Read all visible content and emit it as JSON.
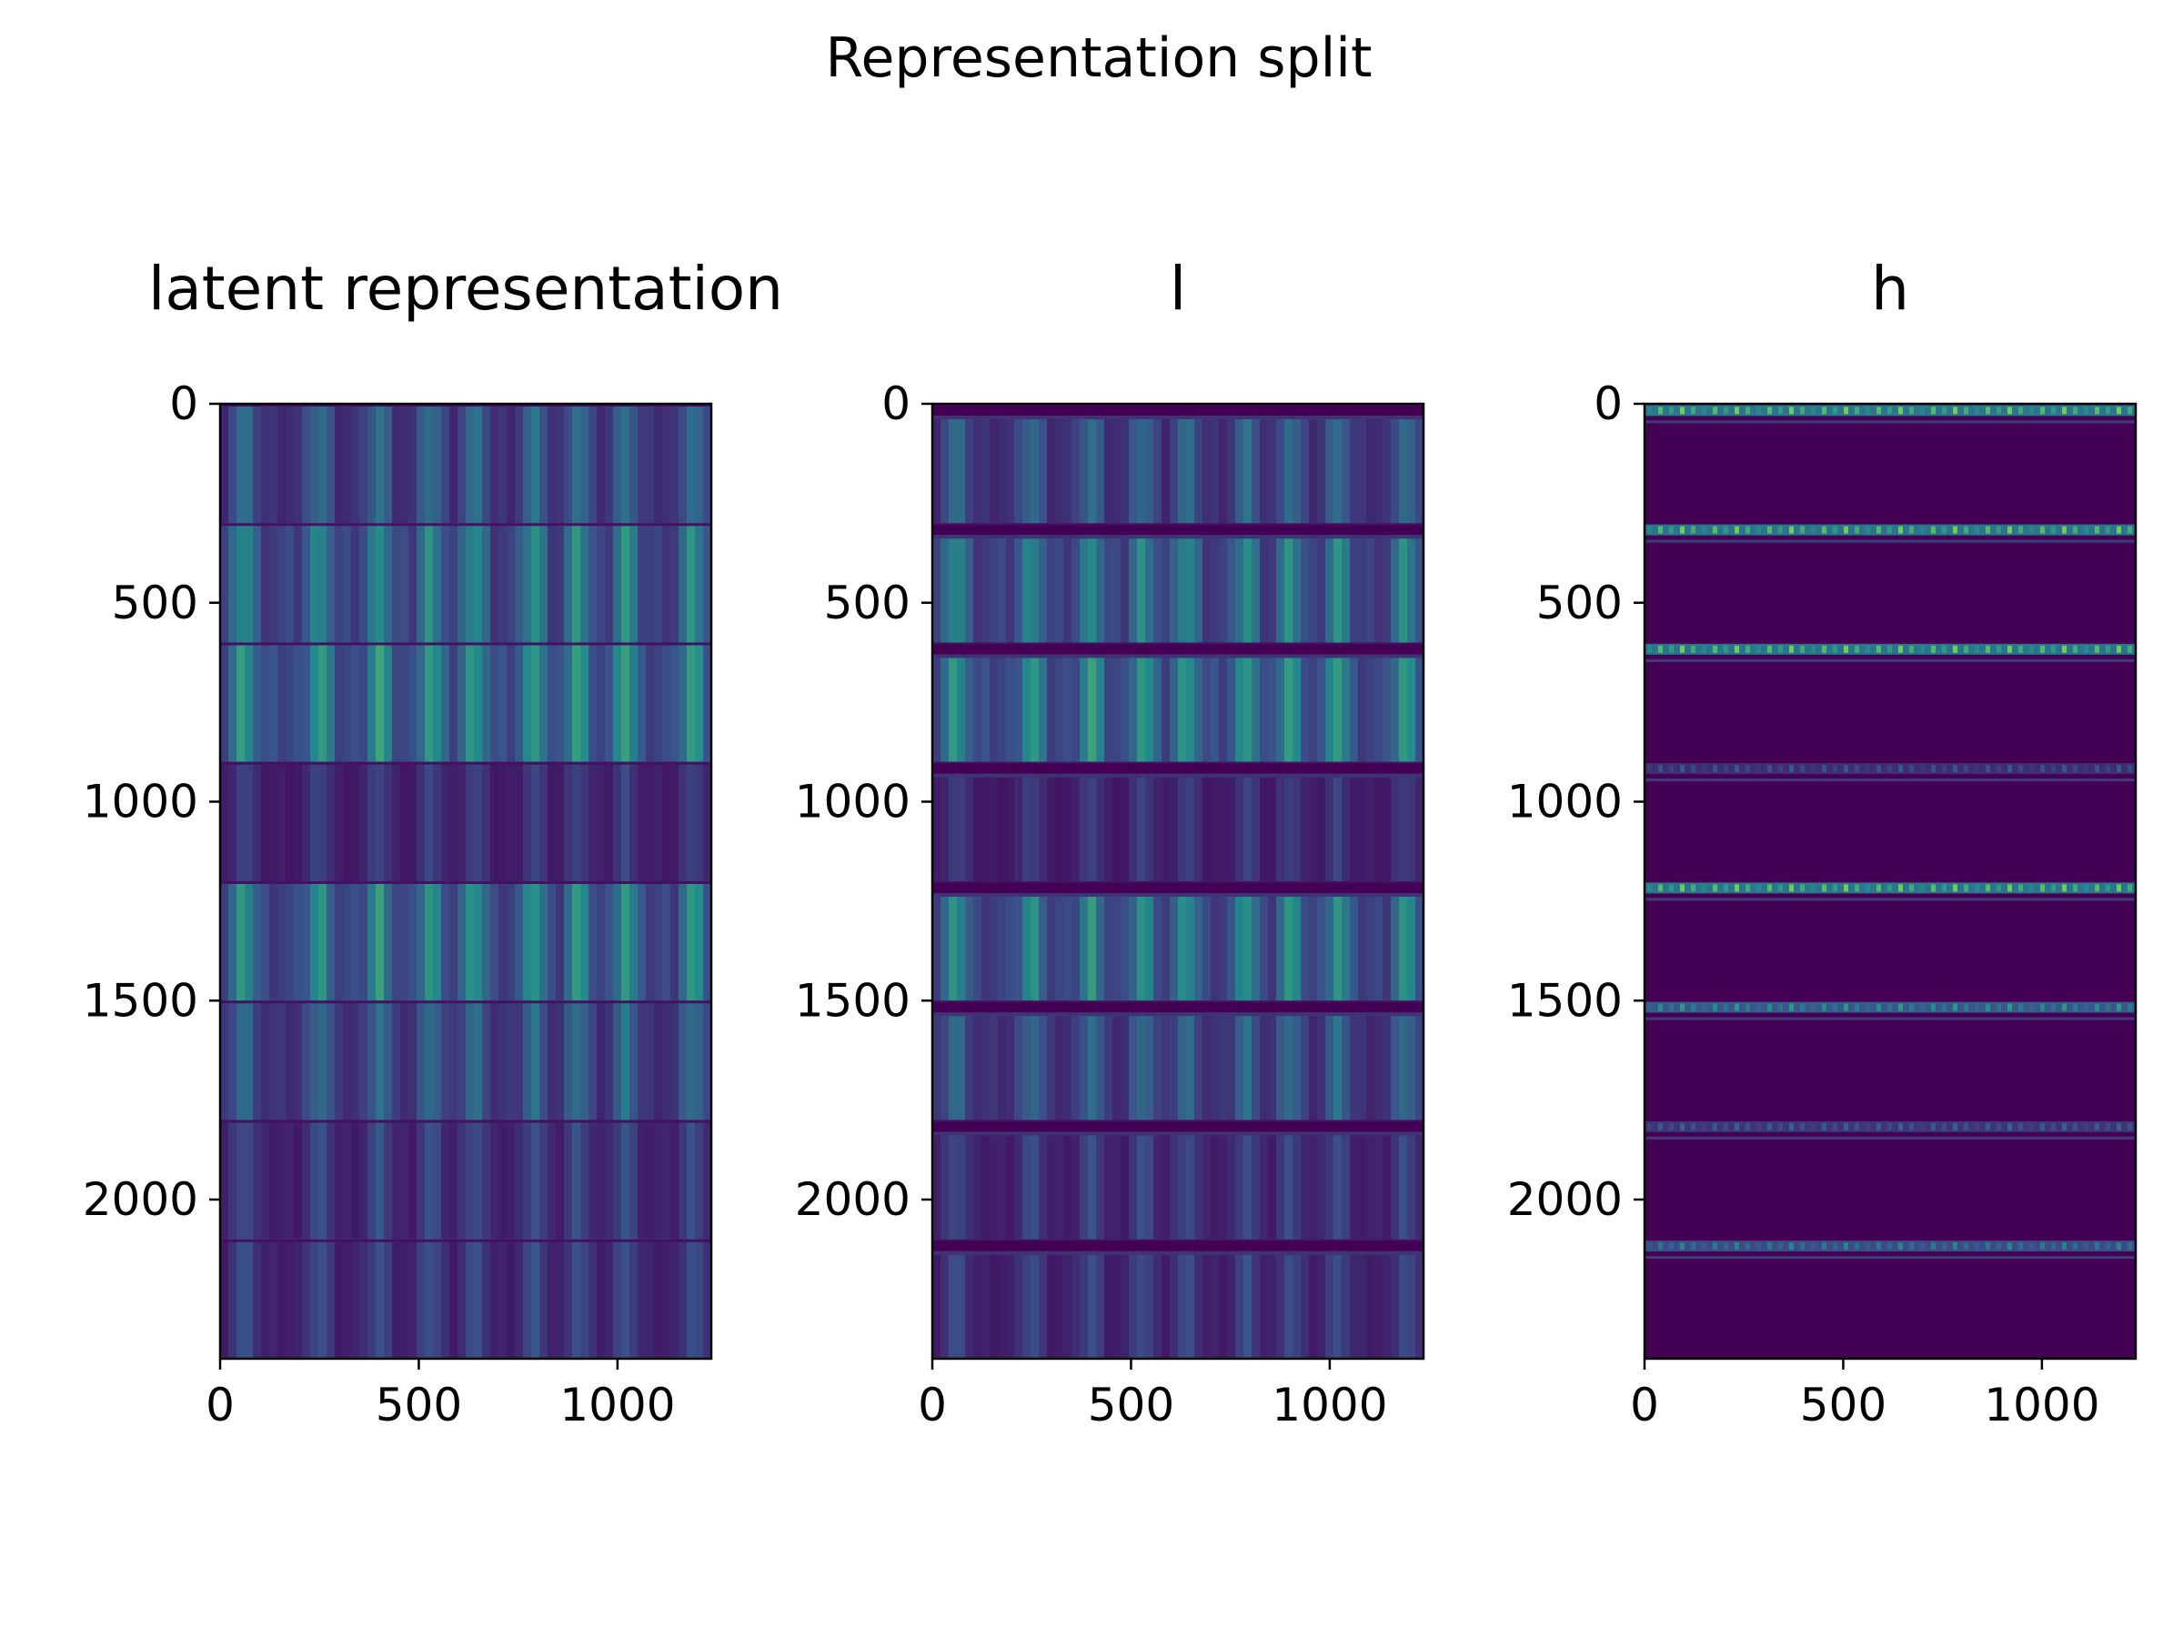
{
  "figure": {
    "suptitle": "Representation split"
  },
  "colormap": {
    "name": "viridis",
    "low": "#440154",
    "mid": "#3b528b",
    "teal": "#21918c",
    "high": "#5ec962"
  },
  "chart_data": [
    {
      "type": "heatmap",
      "title": "latent representation",
      "xlabel": "",
      "ylabel": "",
      "xlim": [
        0,
        1236
      ],
      "ylim": [
        2400,
        0
      ],
      "xticks": [
        "0",
        "500",
        "1000"
      ],
      "yticks": [
        "0",
        "500",
        "1000",
        "1500",
        "2000"
      ],
      "blocks": [
        {
          "y0": 0,
          "y1": 300,
          "intensity": 0.62
        },
        {
          "y0": 300,
          "y1": 600,
          "intensity": 0.82
        },
        {
          "y0": 600,
          "y1": 900,
          "intensity": 0.92
        },
        {
          "y0": 900,
          "y1": 1200,
          "intensity": 0.35
        },
        {
          "y0": 1200,
          "y1": 1500,
          "intensity": 0.86
        },
        {
          "y0": 1500,
          "y1": 1800,
          "intensity": 0.62
        },
        {
          "y0": 1800,
          "y1": 2100,
          "intensity": 0.42
        },
        {
          "y0": 2100,
          "y1": 2400,
          "intensity": 0.42
        }
      ],
      "bright_columns": [
        60,
        250,
        400,
        530,
        640,
        790,
        900,
        1020,
        1190
      ],
      "grid": false
    },
    {
      "type": "heatmap",
      "title": "l",
      "xlabel": "",
      "ylabel": "",
      "xlim": [
        0,
        1236
      ],
      "ylim": [
        2400,
        0
      ],
      "xticks": [
        "0",
        "500",
        "1000"
      ],
      "yticks": [
        "0",
        "500",
        "1000",
        "1500",
        "2000"
      ],
      "blocks": [
        {
          "y0": 0,
          "y1": 300,
          "intensity": 0.6
        },
        {
          "y0": 300,
          "y1": 600,
          "intensity": 0.8
        },
        {
          "y0": 600,
          "y1": 900,
          "intensity": 0.9
        },
        {
          "y0": 900,
          "y1": 1200,
          "intensity": 0.33
        },
        {
          "y0": 1200,
          "y1": 1500,
          "intensity": 0.84
        },
        {
          "y0": 1500,
          "y1": 1800,
          "intensity": 0.6
        },
        {
          "y0": 1800,
          "y1": 2100,
          "intensity": 0.4
        },
        {
          "y0": 2100,
          "y1": 2400,
          "intensity": 0.4
        }
      ],
      "dark_bands": [
        0,
        300,
        600,
        900,
        1200,
        1500,
        1800,
        2100
      ],
      "bright_columns": [
        60,
        250,
        400,
        530,
        640,
        790,
        900,
        1020,
        1190
      ],
      "grid": false
    },
    {
      "type": "heatmap",
      "title": "h",
      "xlabel": "",
      "ylabel": "",
      "xlim": [
        0,
        1236
      ],
      "ylim": [
        2400,
        0
      ],
      "xticks": [
        "0",
        "500",
        "1000"
      ],
      "yticks": [
        "0",
        "500",
        "1000",
        "1500",
        "2000"
      ],
      "background_intensity": 0.0,
      "bands": [
        {
          "y": 10,
          "intensity": 0.85
        },
        {
          "y": 310,
          "intensity": 0.85
        },
        {
          "y": 610,
          "intensity": 0.85
        },
        {
          "y": 910,
          "intensity": 0.3
        },
        {
          "y": 1210,
          "intensity": 0.85
        },
        {
          "y": 1510,
          "intensity": 0.6
        },
        {
          "y": 1810,
          "intensity": 0.35
        },
        {
          "y": 2110,
          "intensity": 0.5
        }
      ],
      "grid": false
    }
  ]
}
